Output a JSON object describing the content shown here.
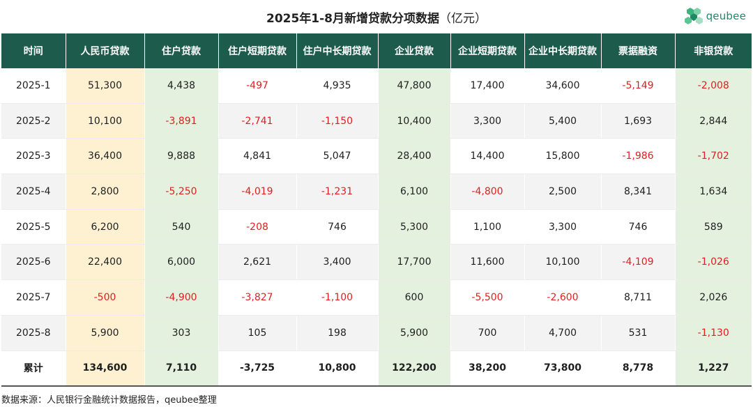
{
  "title": "2025年1-8月新增贷款分项数据",
  "unit": "（亿元）",
  "logo": {
    "text": "qeubee",
    "color": "#1e8a63"
  },
  "source": "数据来源：人民银行金融统计数据报告，qeubee整理",
  "colors": {
    "header_bg": "#1d5b4d",
    "rmb_col": "#fdf1d2",
    "green_col": "#e3f1de",
    "negative": "#e02020"
  },
  "chart_data": {
    "type": "table",
    "title": "2025年1-8月新增贷款分项数据（亿元）",
    "columns": [
      "时间",
      "人民币贷款",
      "住户贷款",
      "住户短期贷款",
      "住户中长期贷款",
      "企业贷款",
      "企业短期贷款",
      "企业中长期贷款",
      "票据融资",
      "非银贷款"
    ],
    "rows": [
      [
        "2025-1",
        "51,300",
        "4,438",
        "-497",
        "4,935",
        "47,800",
        "17,400",
        "34,600",
        "-5,149",
        "-2,008"
      ],
      [
        "2025-2",
        "10,100",
        "-3,891",
        "-2,741",
        "-1,150",
        "10,400",
        "3,300",
        "5,400",
        "1,693",
        "2,844"
      ],
      [
        "2025-3",
        "36,400",
        "9,888",
        "4,841",
        "5,047",
        "28,400",
        "14,400",
        "15,800",
        "-1,986",
        "-1,702"
      ],
      [
        "2025-4",
        "2,800",
        "-5,250",
        "-4,019",
        "-1,231",
        "6,100",
        "-4,800",
        "2,500",
        "8,341",
        "1,634"
      ],
      [
        "2025-5",
        "6,200",
        "540",
        "-208",
        "746",
        "5,300",
        "1,100",
        "3,300",
        "746",
        "589"
      ],
      [
        "2025-6",
        "22,400",
        "6,000",
        "2,621",
        "3,400",
        "17,700",
        "11,600",
        "10,100",
        "-4,109",
        "-1,026"
      ],
      [
        "2025-7",
        "-500",
        "-4,900",
        "-3,827",
        "-1,100",
        "600",
        "-5,500",
        "-2,600",
        "8,711",
        "2,026"
      ],
      [
        "2025-8",
        "5,900",
        "303",
        "105",
        "198",
        "5,900",
        "700",
        "4,700",
        "531",
        "-1,130"
      ]
    ],
    "total": [
      "累计",
      "134,600",
      "7,110",
      "-3,725",
      "10,800",
      "122,200",
      "38,200",
      "73,800",
      "8,778",
      "1,227"
    ]
  }
}
